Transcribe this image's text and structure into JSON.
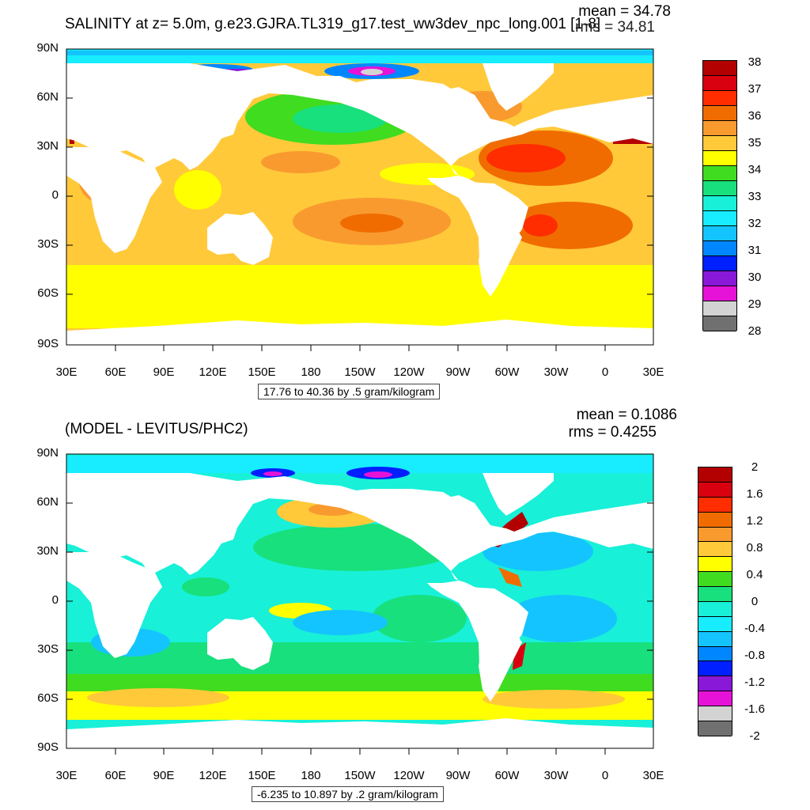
{
  "panels": [
    {
      "title": "SALINITY at z=   5.0m, g.e23.GJRA.TL319_g17.test_ww3dev_npc_long.001 [1-8]",
      "mean_text": "mean = 34.78",
      "rms_text": "rms = 34.81",
      "subtitle": "17.76 to 40.36 by .5 gram/kilogram",
      "lat_ticks": [
        "90N",
        "60N",
        "30N",
        "0",
        "30S",
        "60S",
        "90S"
      ],
      "lon_ticks": [
        "30E",
        "60E",
        "90E",
        "120E",
        "150E",
        "180",
        "150W",
        "120W",
        "90W",
        "60W",
        "30W",
        "0",
        "30E"
      ],
      "colorbar_labels": [
        "38",
        "37",
        "36",
        "35",
        "34",
        "33",
        "32",
        "31",
        "30",
        "29",
        "28"
      ],
      "colorbar_colors": [
        "#b30000",
        "#d9000f",
        "#ff2d00",
        "#f06c00",
        "#f99a2f",
        "#ffc93a",
        "#ffff00",
        "#3fdc1f",
        "#18e07c",
        "#18f0d8",
        "#18ecff",
        "#14c4ff",
        "#0087ff",
        "#0020ff",
        "#8a18d8",
        "#e612d8",
        "#d3d3d3",
        "#707070"
      ]
    },
    {
      "title": "(MODEL - LEVITUS/PHC2)",
      "mean_text": "mean = 0.1086",
      "rms_text": "rms = 0.4255",
      "subtitle": "-6.235 to 10.897 by .2 gram/kilogram",
      "lat_ticks": [
        "90N",
        "60N",
        "30N",
        "0",
        "30S",
        "60S",
        "90S"
      ],
      "lon_ticks": [
        "30E",
        "60E",
        "90E",
        "120E",
        "150E",
        "180",
        "150W",
        "120W",
        "90W",
        "60W",
        "30W",
        "0",
        "30E"
      ],
      "colorbar_labels": [
        "2",
        "1.6",
        "1.2",
        "0.8",
        "0.4",
        "0",
        "-0.4",
        "-0.8",
        "-1.2",
        "-1.6",
        "-2"
      ],
      "colorbar_colors": [
        "#b30000",
        "#d9000f",
        "#ff2d00",
        "#f06c00",
        "#f99a2f",
        "#ffc93a",
        "#ffff00",
        "#3fdc1f",
        "#18e07c",
        "#18f0d8",
        "#18ecff",
        "#14c4ff",
        "#0087ff",
        "#0020ff",
        "#8a18d8",
        "#e612d8",
        "#d3d3d3",
        "#707070"
      ]
    }
  ],
  "colors": {
    "land": "#ffffff",
    "panel1_base": "#ffc93a",
    "panel2_base": "#18f0d8"
  }
}
